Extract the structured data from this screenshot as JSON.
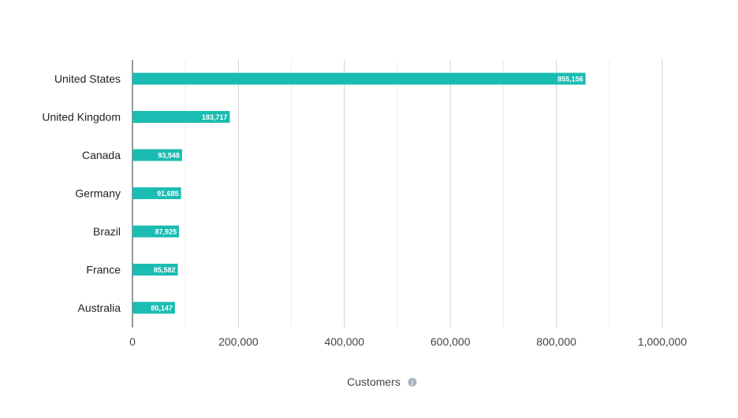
{
  "chart_data": {
    "type": "bar",
    "orientation": "horizontal",
    "categories": [
      "United States",
      "United Kingdom",
      "Canada",
      "Germany",
      "Brazil",
      "France",
      "Australia"
    ],
    "values": [
      855156,
      183717,
      93548,
      91685,
      87925,
      85582,
      80147
    ],
    "value_labels": [
      "855,156",
      "183,717",
      "93,548",
      "91,685",
      "87,925",
      "85,582",
      "80,147"
    ],
    "xlabel": "Customers",
    "xlim": [
      0,
      1000000
    ],
    "xticks": [
      0,
      200000,
      400000,
      600000,
      800000,
      1000000
    ],
    "xtick_labels": [
      "0",
      "200,000",
      "400,000",
      "600,000",
      "800,000",
      "1,000,000"
    ],
    "grid": true,
    "bar_color": "#1bbcb2"
  },
  "info_icon": "info-icon"
}
